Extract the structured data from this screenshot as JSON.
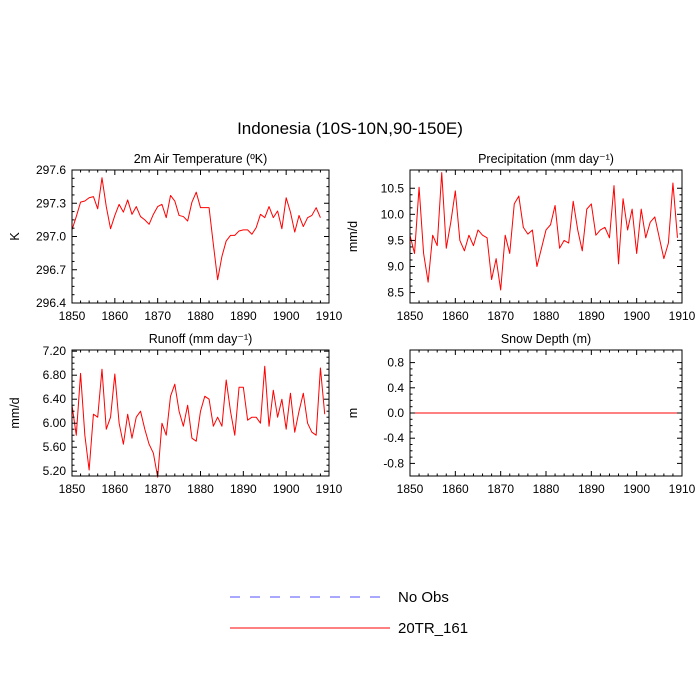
{
  "title": "Indonesia (10S-10N,90-150E)",
  "legend": {
    "entries": [
      {
        "name": "No Obs",
        "color": "#5050ff",
        "style": "dashed"
      },
      {
        "name": "20TR_161",
        "color": "#ff0000",
        "style": "solid"
      }
    ]
  },
  "chart_data": [
    {
      "type": "line",
      "title": "2m Air Temperature (ºK)",
      "ylabel": "K",
      "xlim": [
        1850,
        1910
      ],
      "ylim": [
        296.4,
        297.6
      ],
      "xticks": [
        1850,
        1860,
        1870,
        1880,
        1890,
        1900,
        1910
      ],
      "yticks": [
        296.4,
        296.7,
        297.0,
        297.3,
        297.6
      ],
      "ytick_labels": [
        "296.4",
        "296.7",
        "297.0",
        "297.3",
        "297.6"
      ],
      "x_start": 1850,
      "series": [
        {
          "name": "20TR_161",
          "color": "#ff0000",
          "values": [
            297.06,
            297.18,
            297.31,
            297.32,
            297.35,
            297.36,
            297.25,
            297.53,
            297.27,
            297.07,
            297.19,
            297.29,
            297.22,
            297.33,
            297.2,
            297.27,
            297.18,
            297.15,
            297.11,
            297.2,
            297.27,
            297.29,
            297.17,
            297.37,
            297.32,
            297.19,
            297.18,
            297.14,
            297.31,
            297.4,
            297.26,
            297.26,
            297.26,
            296.93,
            296.61,
            296.82,
            296.96,
            297.01,
            297.01,
            297.05,
            297.06,
            297.06,
            297.02,
            297.08,
            297.2,
            297.17,
            297.27,
            297.17,
            297.23,
            297.07,
            297.35,
            297.22,
            297.04,
            297.19,
            297.09,
            297.17,
            297.19,
            297.26,
            297.17
          ]
        }
      ]
    },
    {
      "type": "line",
      "title": "Precipitation (mm day⁻¹)",
      "ylabel": "mm/d",
      "xlim": [
        1850,
        1910
      ],
      "ylim": [
        8.3,
        10.85
      ],
      "xticks": [
        1850,
        1860,
        1870,
        1880,
        1890,
        1900,
        1910
      ],
      "yticks": [
        8.5,
        9.0,
        9.5,
        10.0,
        10.5
      ],
      "ytick_labels": [
        "8.5",
        "9.0",
        "9.5",
        "10.0",
        "10.5"
      ],
      "x_start": 1850,
      "series": [
        {
          "name": "20TR_161",
          "color": "#ff0000",
          "values": [
            9.6,
            9.25,
            10.52,
            9.25,
            8.7,
            9.6,
            9.4,
            10.8,
            9.35,
            9.85,
            10.45,
            9.5,
            9.3,
            9.6,
            9.4,
            9.7,
            9.6,
            9.55,
            8.75,
            9.15,
            8.55,
            9.6,
            9.25,
            10.2,
            10.35,
            9.75,
            9.62,
            9.7,
            9.0,
            9.35,
            9.7,
            9.8,
            10.17,
            9.35,
            9.5,
            9.45,
            10.25,
            9.7,
            9.3,
            10.1,
            10.2,
            9.6,
            9.7,
            9.75,
            9.55,
            10.55,
            9.05,
            10.3,
            9.7,
            10.1,
            9.25,
            10.1,
            9.55,
            9.85,
            9.95,
            9.55,
            9.15,
            9.45,
            10.6,
            9.55
          ]
        }
      ]
    },
    {
      "type": "line",
      "title": "Runoff (mm day⁻¹)",
      "ylabel": "mm/d",
      "xlim": [
        1850,
        1910
      ],
      "ylim": [
        5.12,
        7.22
      ],
      "xticks": [
        1850,
        1860,
        1870,
        1880,
        1890,
        1900,
        1910
      ],
      "yticks": [
        5.2,
        5.6,
        6.0,
        6.4,
        6.8,
        7.2
      ],
      "ytick_labels": [
        "5.20",
        "5.60",
        "6.00",
        "6.40",
        "6.80",
        "7.20"
      ],
      "x_start": 1850,
      "series": [
        {
          "name": "20TR_161",
          "color": "#ff0000",
          "values": [
            6.3,
            5.8,
            6.83,
            5.8,
            5.22,
            6.15,
            6.1,
            6.9,
            5.9,
            6.1,
            6.82,
            6.0,
            5.65,
            6.15,
            5.75,
            6.1,
            6.2,
            5.9,
            5.65,
            5.5,
            5.1,
            6.0,
            5.8,
            6.45,
            6.65,
            6.2,
            5.95,
            6.3,
            5.75,
            5.7,
            6.2,
            6.45,
            6.4,
            5.95,
            6.1,
            5.95,
            6.72,
            6.2,
            5.8,
            6.6,
            6.6,
            6.05,
            6.1,
            6.1,
            6.0,
            6.95,
            5.95,
            6.55,
            6.1,
            6.4,
            5.9,
            6.5,
            5.85,
            6.2,
            6.5,
            6.0,
            5.85,
            5.8,
            6.92,
            6.15
          ]
        }
      ]
    },
    {
      "type": "line",
      "title": "Snow Depth (m)",
      "ylabel": "m",
      "xlim": [
        1850,
        1910
      ],
      "ylim": [
        -1.0,
        1.0
      ],
      "xticks": [
        1850,
        1860,
        1870,
        1880,
        1890,
        1900,
        1910
      ],
      "yticks": [
        -0.8,
        -0.4,
        0.0,
        0.4,
        0.8
      ],
      "ytick_labels": [
        "-0.8",
        "-0.4",
        "0.0",
        "0.4",
        "0.8"
      ],
      "x_start": 1850,
      "series": [
        {
          "name": "20TR_161",
          "color": "#ff0000",
          "values": [
            0,
            0,
            0,
            0,
            0,
            0,
            0,
            0,
            0,
            0,
            0,
            0,
            0,
            0,
            0,
            0,
            0,
            0,
            0,
            0,
            0,
            0,
            0,
            0,
            0,
            0,
            0,
            0,
            0,
            0,
            0,
            0,
            0,
            0,
            0,
            0,
            0,
            0,
            0,
            0,
            0,
            0,
            0,
            0,
            0,
            0,
            0,
            0,
            0,
            0,
            0,
            0,
            0,
            0,
            0,
            0,
            0,
            0,
            0,
            0
          ]
        }
      ]
    }
  ]
}
